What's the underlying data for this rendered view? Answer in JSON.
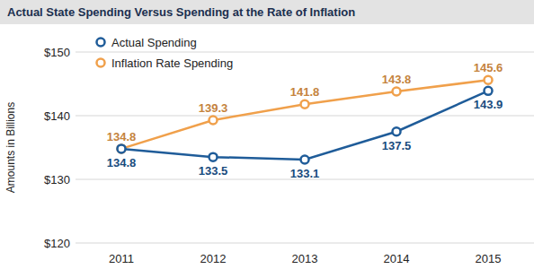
{
  "chart_data": {
    "type": "line",
    "title": "Actual State Spending Versus Spending at the Rate of Inflation",
    "y_label": "Amounts in Billions",
    "categories": [
      "2011",
      "2012",
      "2013",
      "2014",
      "2015"
    ],
    "series": [
      {
        "name": "Actual Spending",
        "color": "#1f5c99",
        "values": [
          134.8,
          133.5,
          133.1,
          137.5,
          143.9
        ]
      },
      {
        "name": "Inflation Rate Spending",
        "color": "#f0a04b",
        "values": [
          134.8,
          139.3,
          141.8,
          143.8,
          145.6
        ]
      }
    ],
    "ylim": [
      120,
      150
    ],
    "yticks": [
      {
        "value": 120,
        "label": "$120"
      },
      {
        "value": 130,
        "label": "$130"
      },
      {
        "value": 140,
        "label": "$140"
      },
      {
        "value": 150,
        "label": "$150"
      }
    ],
    "grid": true,
    "legend": "upper left",
    "data_labels": true,
    "marker": "circle"
  }
}
